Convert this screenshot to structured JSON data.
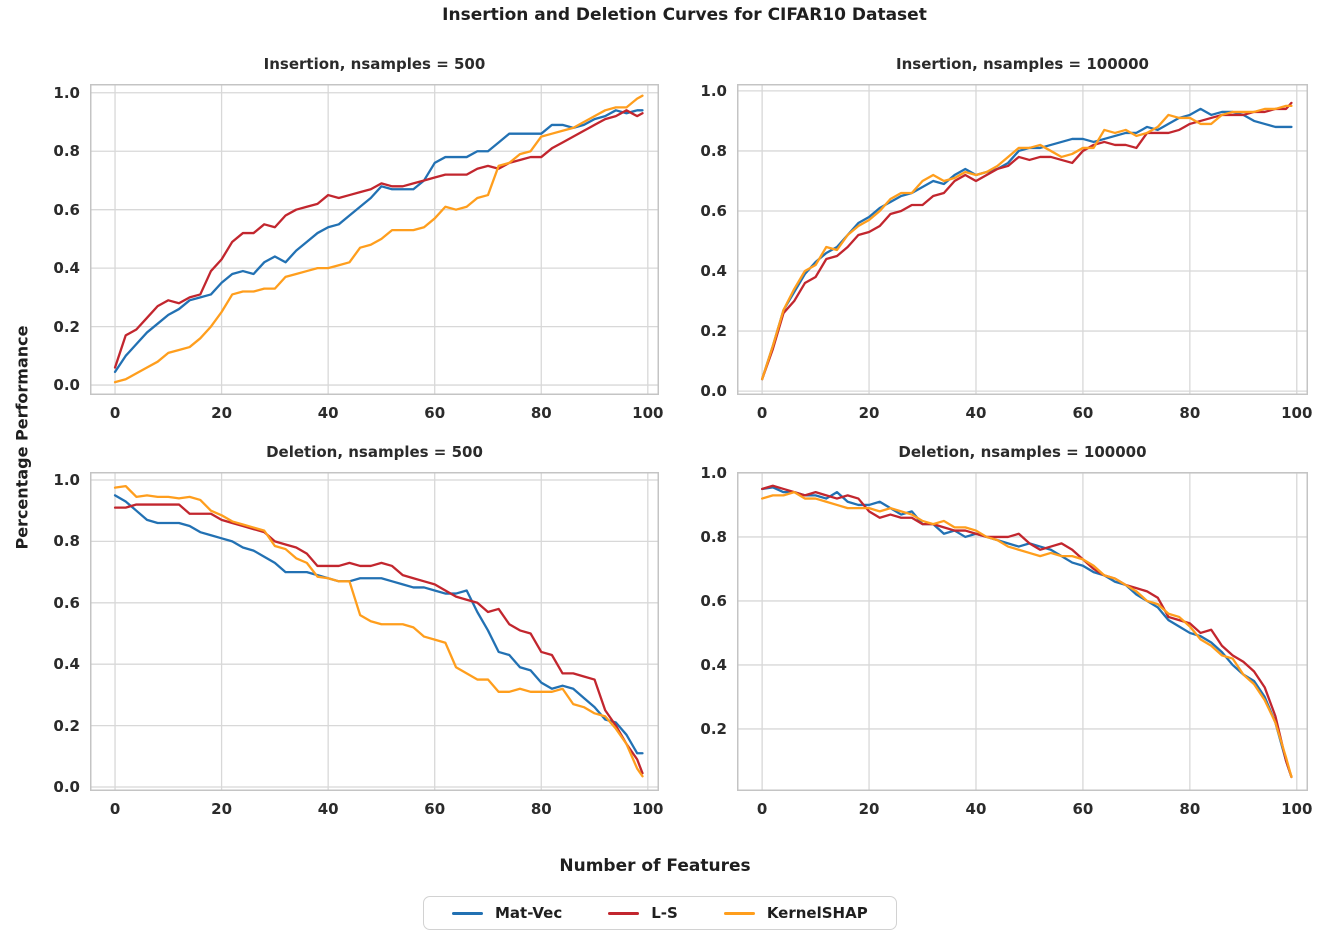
{
  "figure": {
    "title": "Insertion and Deletion Curves for CIFAR10 Dataset",
    "xlabel": "Number of Features",
    "ylabel": "Percentage Performance",
    "colors": {
      "mat_vec": "#2271b3",
      "l_s": "#c2262e",
      "kernelshap": "#ff9e1d",
      "grid": "#d8d8d8",
      "spine": "#c4c4c4",
      "text": "#262626"
    },
    "legend": [
      {
        "label": "Mat-Vec",
        "color": "#2271b3"
      },
      {
        "label": "L-S",
        "color": "#c2262e"
      },
      {
        "label": "KernelSHAP",
        "color": "#ff9e1d"
      }
    ]
  },
  "chart_data": [
    {
      "type": "line",
      "title": "Insertion, nsamples = 500",
      "xlim": [
        -4.7,
        102.1
      ],
      "ylim": [
        -0.034,
        1.03
      ],
      "xticks": [
        0,
        20,
        40,
        60,
        80,
        100
      ],
      "yticks": [
        0.0,
        0.2,
        0.4,
        0.6,
        0.8,
        1.0
      ],
      "grid": true,
      "x": [
        0,
        2,
        4,
        6,
        8,
        10,
        12,
        14,
        16,
        18,
        20,
        22,
        24,
        26,
        28,
        30,
        32,
        34,
        36,
        38,
        40,
        42,
        44,
        46,
        48,
        50,
        52,
        54,
        56,
        58,
        60,
        62,
        64,
        66,
        68,
        70,
        72,
        74,
        76,
        78,
        80,
        82,
        84,
        86,
        88,
        90,
        92,
        94,
        96,
        98,
        99
      ],
      "series": [
        {
          "name": "Mat-Vec",
          "color": "#2271b3",
          "values": [
            0.045,
            0.1,
            0.14,
            0.18,
            0.21,
            0.24,
            0.26,
            0.29,
            0.3,
            0.31,
            0.35,
            0.38,
            0.39,
            0.38,
            0.42,
            0.44,
            0.42,
            0.46,
            0.49,
            0.52,
            0.54,
            0.55,
            0.58,
            0.61,
            0.64,
            0.68,
            0.67,
            0.67,
            0.67,
            0.7,
            0.76,
            0.78,
            0.78,
            0.78,
            0.8,
            0.8,
            0.83,
            0.86,
            0.86,
            0.86,
            0.86,
            0.89,
            0.89,
            0.88,
            0.89,
            0.91,
            0.92,
            0.94,
            0.93,
            0.94,
            0.94
          ]
        },
        {
          "name": "L-S",
          "color": "#c2262e",
          "values": [
            0.06,
            0.17,
            0.19,
            0.23,
            0.27,
            0.29,
            0.28,
            0.3,
            0.31,
            0.39,
            0.43,
            0.49,
            0.52,
            0.52,
            0.55,
            0.54,
            0.58,
            0.6,
            0.61,
            0.62,
            0.65,
            0.64,
            0.65,
            0.66,
            0.67,
            0.69,
            0.68,
            0.68,
            0.69,
            0.7,
            0.71,
            0.72,
            0.72,
            0.72,
            0.74,
            0.75,
            0.74,
            0.76,
            0.77,
            0.78,
            0.78,
            0.81,
            0.83,
            0.85,
            0.87,
            0.89,
            0.91,
            0.92,
            0.94,
            0.92,
            0.93
          ]
        },
        {
          "name": "KernelSHAP",
          "color": "#ff9e1d",
          "values": [
            0.01,
            0.02,
            0.04,
            0.06,
            0.08,
            0.11,
            0.12,
            0.13,
            0.16,
            0.2,
            0.25,
            0.31,
            0.32,
            0.32,
            0.33,
            0.33,
            0.37,
            0.38,
            0.39,
            0.4,
            0.4,
            0.41,
            0.42,
            0.47,
            0.48,
            0.5,
            0.53,
            0.53,
            0.53,
            0.54,
            0.57,
            0.61,
            0.6,
            0.61,
            0.64,
            0.65,
            0.75,
            0.76,
            0.79,
            0.8,
            0.85,
            0.86,
            0.87,
            0.88,
            0.9,
            0.92,
            0.94,
            0.95,
            0.95,
            0.98,
            0.99
          ]
        }
      ]
    },
    {
      "type": "line",
      "title": "Insertion, nsamples = 100000",
      "xlim": [
        -4.7,
        102.1
      ],
      "ylim": [
        -0.013,
        1.023
      ],
      "xticks": [
        0,
        20,
        40,
        60,
        80,
        100
      ],
      "yticks": [
        0.0,
        0.2,
        0.4,
        0.6,
        0.8,
        1.0
      ],
      "grid": true,
      "x": [
        0,
        2,
        4,
        6,
        8,
        10,
        12,
        14,
        16,
        18,
        20,
        22,
        24,
        26,
        28,
        30,
        32,
        34,
        36,
        38,
        40,
        42,
        44,
        46,
        48,
        50,
        52,
        54,
        56,
        58,
        60,
        62,
        64,
        66,
        68,
        70,
        72,
        74,
        76,
        78,
        80,
        82,
        84,
        86,
        88,
        90,
        92,
        94,
        96,
        98,
        99
      ],
      "series": [
        {
          "name": "Mat-Vec",
          "color": "#2271b3",
          "values": [
            0.04,
            0.15,
            0.27,
            0.33,
            0.39,
            0.43,
            0.46,
            0.48,
            0.52,
            0.56,
            0.58,
            0.61,
            0.63,
            0.65,
            0.66,
            0.68,
            0.7,
            0.69,
            0.72,
            0.74,
            0.72,
            0.73,
            0.74,
            0.76,
            0.8,
            0.81,
            0.81,
            0.82,
            0.83,
            0.84,
            0.84,
            0.83,
            0.84,
            0.85,
            0.86,
            0.86,
            0.88,
            0.87,
            0.89,
            0.91,
            0.92,
            0.94,
            0.92,
            0.93,
            0.93,
            0.92,
            0.9,
            0.89,
            0.88,
            0.88,
            0.88
          ]
        },
        {
          "name": "L-S",
          "color": "#c2262e",
          "values": [
            0.04,
            0.14,
            0.26,
            0.3,
            0.36,
            0.38,
            0.44,
            0.45,
            0.48,
            0.52,
            0.53,
            0.55,
            0.59,
            0.6,
            0.62,
            0.62,
            0.65,
            0.66,
            0.7,
            0.72,
            0.7,
            0.72,
            0.74,
            0.75,
            0.78,
            0.77,
            0.78,
            0.78,
            0.77,
            0.76,
            0.8,
            0.82,
            0.83,
            0.82,
            0.82,
            0.81,
            0.86,
            0.86,
            0.86,
            0.87,
            0.89,
            0.9,
            0.91,
            0.92,
            0.92,
            0.92,
            0.93,
            0.93,
            0.94,
            0.94,
            0.96
          ]
        },
        {
          "name": "KernelSHAP",
          "color": "#ff9e1d",
          "values": [
            0.04,
            0.15,
            0.27,
            0.34,
            0.4,
            0.42,
            0.48,
            0.47,
            0.52,
            0.55,
            0.57,
            0.6,
            0.64,
            0.66,
            0.66,
            0.7,
            0.72,
            0.7,
            0.71,
            0.73,
            0.72,
            0.73,
            0.75,
            0.78,
            0.81,
            0.81,
            0.82,
            0.8,
            0.78,
            0.79,
            0.81,
            0.81,
            0.87,
            0.86,
            0.87,
            0.85,
            0.86,
            0.88,
            0.92,
            0.91,
            0.91,
            0.89,
            0.89,
            0.92,
            0.93,
            0.93,
            0.93,
            0.94,
            0.94,
            0.95,
            0.95
          ]
        }
      ]
    },
    {
      "type": "line",
      "title": "Deletion, nsamples = 500",
      "xlim": [
        -4.7,
        102.1
      ],
      "ylim": [
        -0.013,
        1.026
      ],
      "xticks": [
        0,
        20,
        40,
        60,
        80,
        100
      ],
      "yticks": [
        0.0,
        0.2,
        0.4,
        0.6,
        0.8,
        1.0
      ],
      "grid": true,
      "x": [
        0,
        2,
        4,
        6,
        8,
        10,
        12,
        14,
        16,
        18,
        20,
        22,
        24,
        26,
        28,
        30,
        32,
        34,
        36,
        38,
        40,
        42,
        44,
        46,
        48,
        50,
        52,
        54,
        56,
        58,
        60,
        62,
        64,
        66,
        68,
        70,
        72,
        74,
        76,
        78,
        80,
        82,
        84,
        86,
        88,
        90,
        92,
        94,
        96,
        98,
        99
      ],
      "series": [
        {
          "name": "Mat-Vec",
          "color": "#2271b3",
          "values": [
            0.95,
            0.93,
            0.9,
            0.87,
            0.86,
            0.86,
            0.86,
            0.85,
            0.83,
            0.82,
            0.81,
            0.8,
            0.78,
            0.77,
            0.75,
            0.73,
            0.7,
            0.7,
            0.7,
            0.69,
            0.68,
            0.67,
            0.67,
            0.68,
            0.68,
            0.68,
            0.67,
            0.66,
            0.65,
            0.65,
            0.64,
            0.63,
            0.63,
            0.64,
            0.57,
            0.51,
            0.44,
            0.43,
            0.39,
            0.38,
            0.34,
            0.32,
            0.33,
            0.32,
            0.29,
            0.26,
            0.22,
            0.21,
            0.17,
            0.11,
            0.11
          ]
        },
        {
          "name": "L-S",
          "color": "#c2262e",
          "values": [
            0.91,
            0.91,
            0.92,
            0.92,
            0.92,
            0.92,
            0.92,
            0.89,
            0.89,
            0.89,
            0.87,
            0.86,
            0.85,
            0.84,
            0.83,
            0.8,
            0.79,
            0.78,
            0.76,
            0.72,
            0.72,
            0.72,
            0.73,
            0.72,
            0.72,
            0.73,
            0.72,
            0.69,
            0.68,
            0.67,
            0.66,
            0.64,
            0.62,
            0.61,
            0.6,
            0.57,
            0.58,
            0.53,
            0.51,
            0.5,
            0.44,
            0.43,
            0.37,
            0.37,
            0.36,
            0.35,
            0.25,
            0.2,
            0.14,
            0.09,
            0.045
          ]
        },
        {
          "name": "KernelSHAP",
          "color": "#ff9e1d",
          "values": [
            0.975,
            0.98,
            0.945,
            0.95,
            0.945,
            0.945,
            0.94,
            0.945,
            0.935,
            0.9,
            0.885,
            0.865,
            0.855,
            0.845,
            0.835,
            0.785,
            0.775,
            0.745,
            0.73,
            0.685,
            0.68,
            0.67,
            0.67,
            0.56,
            0.54,
            0.53,
            0.53,
            0.53,
            0.52,
            0.49,
            0.48,
            0.47,
            0.39,
            0.37,
            0.35,
            0.35,
            0.31,
            0.31,
            0.32,
            0.31,
            0.31,
            0.31,
            0.32,
            0.27,
            0.26,
            0.24,
            0.23,
            0.19,
            0.14,
            0.06,
            0.035
          ]
        }
      ]
    },
    {
      "type": "line",
      "title": "Deletion, nsamples = 100000",
      "xlim": [
        -4.7,
        102.1
      ],
      "ylim": [
        0.006,
        1.003
      ],
      "xticks": [
        0,
        20,
        40,
        60,
        80,
        100
      ],
      "yticks": [
        0.2,
        0.4,
        0.6,
        0.8,
        1.0
      ],
      "grid": true,
      "x": [
        0,
        2,
        4,
        6,
        8,
        10,
        12,
        14,
        16,
        18,
        20,
        22,
        24,
        26,
        28,
        30,
        32,
        34,
        36,
        38,
        40,
        42,
        44,
        46,
        48,
        50,
        52,
        54,
        56,
        58,
        60,
        62,
        64,
        66,
        68,
        70,
        72,
        74,
        76,
        78,
        80,
        82,
        84,
        86,
        88,
        90,
        92,
        94,
        96,
        98,
        99
      ],
      "series": [
        {
          "name": "Mat-Vec",
          "color": "#2271b3",
          "values": [
            0.95,
            0.955,
            0.94,
            0.94,
            0.93,
            0.93,
            0.92,
            0.94,
            0.91,
            0.9,
            0.9,
            0.91,
            0.89,
            0.87,
            0.88,
            0.84,
            0.84,
            0.81,
            0.82,
            0.8,
            0.81,
            0.8,
            0.79,
            0.78,
            0.77,
            0.78,
            0.77,
            0.76,
            0.74,
            0.72,
            0.71,
            0.69,
            0.68,
            0.66,
            0.65,
            0.62,
            0.6,
            0.58,
            0.54,
            0.52,
            0.5,
            0.49,
            0.47,
            0.44,
            0.4,
            0.37,
            0.35,
            0.3,
            0.22,
            0.1,
            0.05
          ]
        },
        {
          "name": "L-S",
          "color": "#c2262e",
          "values": [
            0.95,
            0.96,
            0.95,
            0.94,
            0.93,
            0.94,
            0.93,
            0.92,
            0.93,
            0.92,
            0.88,
            0.86,
            0.87,
            0.86,
            0.86,
            0.84,
            0.84,
            0.83,
            0.82,
            0.82,
            0.81,
            0.8,
            0.8,
            0.8,
            0.81,
            0.78,
            0.76,
            0.77,
            0.78,
            0.76,
            0.73,
            0.7,
            0.68,
            0.67,
            0.65,
            0.64,
            0.63,
            0.61,
            0.55,
            0.54,
            0.53,
            0.5,
            0.51,
            0.46,
            0.43,
            0.41,
            0.38,
            0.33,
            0.24,
            0.1,
            0.05
          ]
        },
        {
          "name": "KernelSHAP",
          "color": "#ff9e1d",
          "values": [
            0.92,
            0.93,
            0.93,
            0.94,
            0.92,
            0.92,
            0.91,
            0.9,
            0.89,
            0.89,
            0.89,
            0.88,
            0.89,
            0.88,
            0.87,
            0.85,
            0.84,
            0.85,
            0.83,
            0.83,
            0.82,
            0.8,
            0.79,
            0.77,
            0.76,
            0.75,
            0.74,
            0.75,
            0.74,
            0.74,
            0.73,
            0.71,
            0.68,
            0.67,
            0.65,
            0.63,
            0.6,
            0.59,
            0.56,
            0.55,
            0.52,
            0.48,
            0.46,
            0.43,
            0.42,
            0.37,
            0.34,
            0.29,
            0.22,
            0.11,
            0.05
          ]
        }
      ]
    }
  ]
}
